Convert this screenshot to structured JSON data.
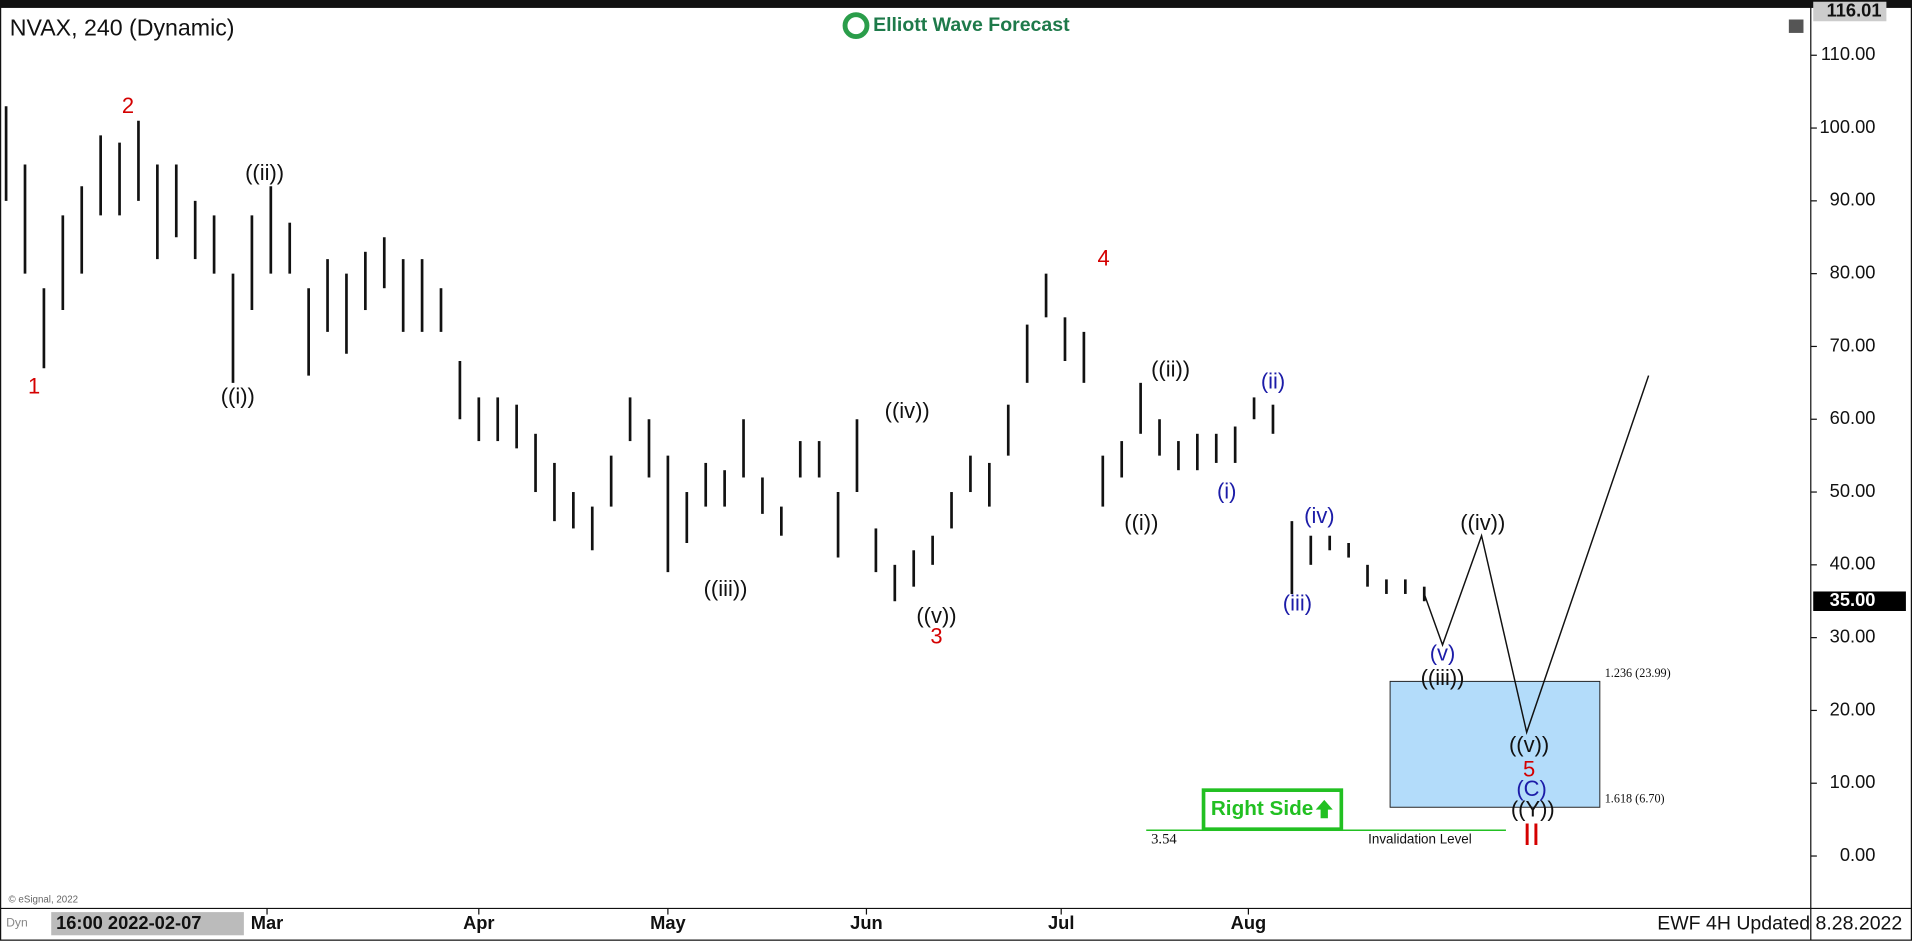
{
  "chart_data": {
    "type": "ohlc",
    "title": "NVAX, 240 (Dynamic)",
    "brand": "Elliott Wave Forecast",
    "footer": "EWF 4H Updated 8.28.2022",
    "cursor_label": "16:00 2022-02-07",
    "copyright": "© eSignal, 2022",
    "mode": "Dyn",
    "color": "#111111",
    "high": [
      103,
      95,
      78,
      88,
      92,
      99,
      98,
      101,
      95,
      95,
      90,
      88,
      80,
      88,
      92,
      87,
      78,
      82,
      80,
      83,
      85,
      82,
      82,
      78,
      68,
      63,
      63,
      62,
      58,
      54,
      50,
      48,
      55,
      63,
      60,
      55,
      50,
      54,
      53,
      60,
      52,
      48,
      57,
      57,
      50,
      60,
      45,
      40,
      42,
      44,
      50,
      55,
      54,
      62,
      73,
      80,
      74,
      72,
      55,
      57,
      65,
      60,
      57,
      58,
      58,
      59,
      63,
      62,
      46,
      44,
      44,
      43,
      40,
      38,
      38,
      37
    ],
    "low": [
      90,
      80,
      67,
      75,
      80,
      88,
      88,
      90,
      82,
      85,
      82,
      80,
      65,
      75,
      80,
      80,
      66,
      72,
      69,
      75,
      78,
      72,
      72,
      72,
      60,
      57,
      57,
      56,
      50,
      46,
      45,
      42,
      48,
      57,
      52,
      39,
      43,
      48,
      48,
      52,
      47,
      44,
      52,
      52,
      41,
      50,
      39,
      35,
      37,
      40,
      45,
      50,
      48,
      55,
      65,
      74,
      68,
      65,
      48,
      52,
      58,
      55,
      53,
      53,
      54,
      54,
      60,
      58,
      36,
      40,
      42,
      41,
      37,
      36,
      36,
      35
    ],
    "xticks": [
      {
        "value": 13.8,
        "label": "Mar"
      },
      {
        "value": 25,
        "label": "Apr"
      },
      {
        "value": 35,
        "label": "May"
      },
      {
        "value": 45.5,
        "label": "Jun"
      },
      {
        "value": 55.8,
        "label": "Jul"
      },
      {
        "value": 65.7,
        "label": "Aug"
      }
    ],
    "ylim": [
      -7.2,
      116.25
    ],
    "yticks": [
      {
        "value": 0,
        "label": "0.00"
      },
      {
        "value": 10,
        "label": "10.00"
      },
      {
        "value": 20,
        "label": "20.00"
      },
      {
        "value": 30,
        "label": "30.00"
      },
      {
        "value": 40,
        "label": "40.00"
      },
      {
        "value": 50,
        "label": "50.00"
      },
      {
        "value": 60,
        "label": "60.00"
      },
      {
        "value": 70,
        "label": "70.00"
      },
      {
        "value": 80,
        "label": "80.00"
      },
      {
        "value": 90,
        "label": "90.00"
      },
      {
        "value": 100,
        "label": "100.00"
      },
      {
        "value": 110,
        "label": "110.00"
      }
    ],
    "top_price": {
      "value": 116.01,
      "label": "116.01"
    },
    "last_price": {
      "value": 35,
      "label": "35.00"
    },
    "zone": {
      "top": 23.99,
      "bottom": 6.7,
      "top_label": "1.236 (23.99)",
      "bottom_label": "1.618 (6.70)",
      "color": "#b3dcfa"
    },
    "invalidation": {
      "value": 3.54,
      "label": "3.54",
      "text": "Invalidation Level",
      "color": "#22c022"
    },
    "badge": "Right Side",
    "projection": [
      36,
      29,
      44,
      17,
      66
    ],
    "annotations": [
      {
        "text": "1",
        "color": "#d40000"
      },
      {
        "text": "2",
        "color": "#d40000"
      },
      {
        "text": "((i))",
        "color": "#111111"
      },
      {
        "text": "((ii))",
        "color": "#111111"
      },
      {
        "text": "((iii))",
        "color": "#111111"
      },
      {
        "text": "((iv))",
        "color": "#111111"
      },
      {
        "text": "((v))",
        "color": "#111111"
      },
      {
        "text": "3",
        "color": "#d40000"
      },
      {
        "text": "4",
        "color": "#d40000"
      },
      {
        "text": "((i))",
        "color": "#111111"
      },
      {
        "text": "((ii))",
        "color": "#111111"
      },
      {
        "text": "(i)",
        "color": "#1c1ca8"
      },
      {
        "text": "(ii)",
        "color": "#1c1ca8"
      },
      {
        "text": "(iii)",
        "color": "#1c1ca8"
      },
      {
        "text": "(iv)",
        "color": "#1c1ca8"
      },
      {
        "text": "(v)",
        "color": "#1c1ca8"
      },
      {
        "text": "((iii))",
        "color": "#111111"
      },
      {
        "text": "((iv))",
        "color": "#111111"
      },
      {
        "text": "((v))",
        "color": "#111111"
      },
      {
        "text": "5",
        "color": "#d40000"
      },
      {
        "text": "(C)",
        "color": "#1c1ca8"
      },
      {
        "text": "((Y))",
        "color": "#111111"
      },
      {
        "text": "II",
        "color": "#d40000"
      }
    ]
  }
}
